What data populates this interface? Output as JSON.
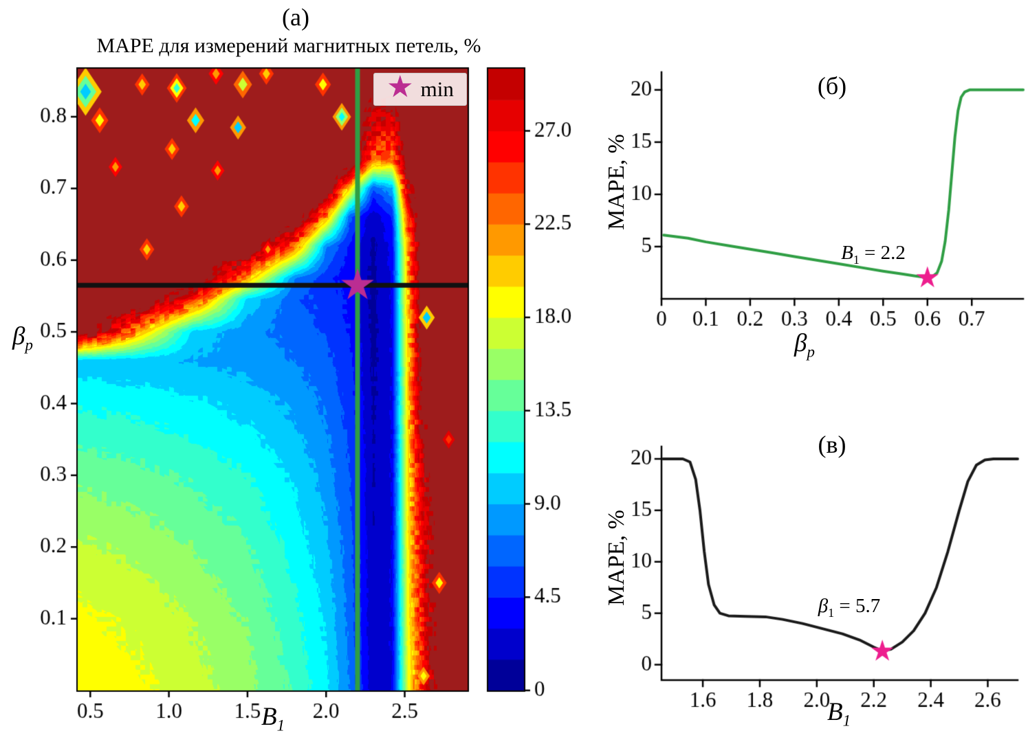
{
  "panels": {
    "a": {
      "label": "(а)",
      "title": "MAPE для измерений магнитных петель, %",
      "xlabel_base": "B",
      "xlabel_sub": "1",
      "ylabel_base": "β",
      "ylabel_sub": "p",
      "legend_symbol": "★",
      "legend_text": "min"
    },
    "b": {
      "label": "(б)",
      "ylabel": "MAPE, %",
      "xlabel_base": "β",
      "xlabel_sub": "p",
      "annotation_base": "B",
      "annotation_sub": "1",
      "annotation_rest": " = 2.2"
    },
    "v": {
      "label": "(в)",
      "ylabel": "MAPE, %",
      "xlabel_base": "B",
      "xlabel_sub": "1",
      "annotation_base": "β",
      "annotation_sub": "1",
      "annotation_rest": " = 5.7"
    }
  },
  "chart_data": [
    {
      "type": "heatmap",
      "title": "MAPE для измерений магнитных петель, %",
      "xlabel": "B_1",
      "ylabel": "beta_p",
      "x_range": [
        0.42,
        2.9
      ],
      "y_range": [
        0.0,
        0.867
      ],
      "x_tick_values": [
        0.5,
        1.0,
        1.5,
        2.0,
        2.5
      ],
      "x_tick_labels": [
        "0.5",
        "1.0",
        "1.5",
        "2.0",
        "2.5"
      ],
      "y_tick_values": [
        0.1,
        0.2,
        0.3,
        0.4,
        0.5,
        0.6,
        0.7,
        0.8
      ],
      "y_tick_labels": [
        "0.1",
        "0.2",
        "0.3",
        "0.4",
        "0.5",
        "0.6",
        "0.7",
        "0.8"
      ],
      "level_min": 0,
      "level_step": 1.5,
      "n_levels": 20,
      "colorbar": {
        "vmin": 0,
        "vmax": 30,
        "tick_values": [
          0,
          4.5,
          9.0,
          13.5,
          18.0,
          22.5,
          27.0
        ],
        "tick_labels": [
          "0",
          "4.5",
          "9.0",
          "13.5",
          "18.0",
          "22.5",
          "27.0"
        ]
      },
      "colors": [
        "#000099",
        "#0000CC",
        "#0000FF",
        "#0033FF",
        "#0066FF",
        "#0099FF",
        "#00CCFF",
        "#00FFFF",
        "#33FFCC",
        "#66FF99",
        "#99FF66",
        "#CCFF33",
        "#FFFF00",
        "#FFCC00",
        "#FF9900",
        "#FF6600",
        "#FF3300",
        "#FF0000",
        "#E60000",
        "#C40000"
      ],
      "over_color": "#9E1C1C",
      "grid_x": [
        0.42,
        0.8,
        1.15,
        1.5,
        1.8,
        2.0,
        2.15,
        2.3,
        2.42,
        2.52,
        2.62,
        2.75,
        2.9
      ],
      "grid_y": [
        0.0,
        0.1,
        0.2,
        0.3,
        0.4,
        0.46,
        0.5,
        0.545,
        0.575,
        0.62,
        0.66,
        0.7,
        0.74,
        0.867
      ],
      "values": [
        [
          19.2,
          18.4,
          17.2,
          15.6,
          13.2,
          10.8,
          7.5,
          1.8,
          3.0,
          18.0,
          26,
          35,
          35
        ],
        [
          18.4,
          17.6,
          16.4,
          14.8,
          12.5,
          10.2,
          7.0,
          1.7,
          3.0,
          18.5,
          27,
          35,
          35
        ],
        [
          16.8,
          16.0,
          15.0,
          13.6,
          11.5,
          9.4,
          6.6,
          1.6,
          3.0,
          19.0,
          28,
          35,
          35
        ],
        [
          14.6,
          14.0,
          13.2,
          12.0,
          10.2,
          8.4,
          6.0,
          1.5,
          3.0,
          19.5,
          30,
          35,
          35
        ],
        [
          11.8,
          11.4,
          10.8,
          9.9,
          8.6,
          7.2,
          5.4,
          1.3,
          3.0,
          20.0,
          32,
          35,
          35
        ],
        [
          9.6,
          9.4,
          9.0,
          8.4,
          7.5,
          6.4,
          4.9,
          1.2,
          3.0,
          20.0,
          33,
          35,
          35
        ],
        [
          35,
          22,
          10.0,
          8.0,
          6.9,
          5.9,
          4.5,
          1.1,
          3.1,
          20.5,
          34,
          35,
          35
        ],
        [
          35,
          35,
          26,
          10.0,
          6.3,
          5.4,
          4.1,
          1.0,
          3.2,
          21,
          35,
          35,
          35
        ],
        [
          35,
          35,
          35,
          22,
          7.5,
          5.1,
          3.8,
          1.0,
          3.3,
          21,
          35,
          35,
          35
        ],
        [
          35,
          35,
          35,
          35,
          24,
          8.0,
          4.2,
          1.2,
          3.6,
          22,
          35,
          35,
          35
        ],
        [
          35,
          35,
          35,
          35,
          35,
          22,
          6.5,
          1.8,
          4.5,
          25,
          35,
          35,
          35
        ],
        [
          35,
          35,
          35,
          35,
          35,
          35,
          20,
          6.0,
          9.0,
          30,
          35,
          35,
          35
        ],
        [
          35,
          35,
          35,
          35,
          35,
          35,
          35,
          24,
          22,
          35,
          35,
          35,
          35
        ],
        [
          35,
          35,
          35,
          35,
          35,
          35,
          35,
          35,
          35,
          35,
          35,
          35,
          35
        ]
      ],
      "speckles": [
        {
          "x": 0.47,
          "y": 0.835,
          "r": 26,
          "rings": [
            20,
            14,
            9
          ]
        },
        {
          "x": 0.56,
          "y": 0.795,
          "r": 14,
          "rings": [
            24,
            19
          ]
        },
        {
          "x": 0.83,
          "y": 0.845,
          "r": 12,
          "rings": [
            25,
            20
          ]
        },
        {
          "x": 1.05,
          "y": 0.84,
          "r": 16,
          "rings": [
            24,
            18,
            12
          ]
        },
        {
          "x": 1.17,
          "y": 0.795,
          "r": 14,
          "rings": [
            22,
            11
          ]
        },
        {
          "x": 1.3,
          "y": 0.86,
          "r": 12,
          "rings": [
            26,
            21
          ]
        },
        {
          "x": 1.02,
          "y": 0.755,
          "r": 12,
          "rings": [
            25,
            20
          ]
        },
        {
          "x": 0.66,
          "y": 0.73,
          "r": 11,
          "rings": [
            26,
            22
          ]
        },
        {
          "x": 1.47,
          "y": 0.845,
          "r": 15,
          "rings": [
            23,
            17
          ]
        },
        {
          "x": 1.62,
          "y": 0.86,
          "r": 12,
          "rings": [
            25,
            20
          ]
        },
        {
          "x": 1.44,
          "y": 0.785,
          "r": 13,
          "rings": [
            22,
            10
          ]
        },
        {
          "x": 1.31,
          "y": 0.725,
          "r": 11,
          "rings": [
            26,
            21
          ]
        },
        {
          "x": 1.98,
          "y": 0.845,
          "r": 13,
          "rings": [
            24,
            19
          ]
        },
        {
          "x": 2.1,
          "y": 0.8,
          "r": 15,
          "rings": [
            22,
            16,
            11
          ]
        },
        {
          "x": 1.08,
          "y": 0.675,
          "r": 12,
          "rings": [
            25,
            20
          ]
        },
        {
          "x": 0.86,
          "y": 0.615,
          "r": 12,
          "rings": [
            24,
            20
          ]
        },
        {
          "x": 1.63,
          "y": 0.615,
          "r": 9,
          "rings": [
            26,
            22
          ]
        },
        {
          "x": 2.64,
          "y": 0.52,
          "r": 13,
          "rings": [
            20,
            10
          ]
        },
        {
          "x": 2.78,
          "y": 0.35,
          "r": 10,
          "rings": [
            27,
            24
          ]
        },
        {
          "x": 2.72,
          "y": 0.15,
          "r": 12,
          "rings": [
            24,
            19
          ]
        },
        {
          "x": 2.62,
          "y": 0.02,
          "r": 10,
          "rings": [
            22,
            18
          ]
        }
      ],
      "vline": {
        "x": 2.2,
        "color": "#2F9E44",
        "width": 7
      },
      "hline": {
        "y": 0.565,
        "color": "#111111",
        "width": 7
      },
      "min_marker": {
        "x": 2.2,
        "y": 0.565,
        "color": "#BB2D92"
      },
      "legend": {
        "symbol": "star",
        "text": "min"
      }
    },
    {
      "type": "line",
      "panel": "б",
      "color": "#2F9E44",
      "xlabel": "β_p",
      "ylabel": "MAPE, %",
      "x_range": [
        0,
        0.816
      ],
      "y_range": [
        0,
        21.7
      ],
      "x_tick_values": [
        0,
        0.1,
        0.2,
        0.3,
        0.4,
        0.5,
        0.6,
        0.7
      ],
      "x_tick_labels": [
        "0",
        "0.1",
        "0.2",
        "0.3",
        "0.4",
        "0.5",
        "0.6",
        "0.7"
      ],
      "y_tick_values": [
        5,
        10,
        15,
        20
      ],
      "y_tick_labels": [
        "5",
        "10",
        "15",
        "20"
      ],
      "x": [
        0.005,
        0.06,
        0.1,
        0.15,
        0.2,
        0.25,
        0.3,
        0.35,
        0.4,
        0.45,
        0.5,
        0.54,
        0.57,
        0.595,
        0.61,
        0.622,
        0.632,
        0.64,
        0.648,
        0.655,
        0.662,
        0.669,
        0.676,
        0.684,
        0.695,
        0.75,
        0.816
      ],
      "y": [
        6.1,
        5.8,
        5.45,
        5.1,
        4.75,
        4.4,
        4.05,
        3.7,
        3.35,
        3.0,
        2.65,
        2.4,
        2.2,
        2.05,
        2.1,
        2.5,
        3.6,
        5.5,
        8.5,
        12,
        15.5,
        18,
        19.3,
        19.8,
        20,
        20,
        20
      ],
      "star": {
        "x": 0.6,
        "y": 2.0,
        "color": "#ED1E8E"
      },
      "annotation": "B1 = 2.2"
    },
    {
      "type": "line",
      "panel": "в",
      "color": "#1A1A1A",
      "xlabel": "B_1",
      "ylabel": "MAPE, %",
      "x_range": [
        1.455,
        2.705
      ],
      "y_range": [
        -1.5,
        21.2
      ],
      "x_tick_values": [
        1.6,
        1.8,
        2.0,
        2.2,
        2.4,
        2.6
      ],
      "x_tick_labels": [
        "1.6",
        "1.8",
        "2.0",
        "2.2",
        "2.4",
        "2.6"
      ],
      "y_tick_values": [
        0,
        5,
        10,
        15,
        20
      ],
      "y_tick_labels": [
        "0",
        "5",
        "10",
        "15",
        "20"
      ],
      "x": [
        1.46,
        1.53,
        1.555,
        1.575,
        1.59,
        1.605,
        1.62,
        1.64,
        1.66,
        1.69,
        1.75,
        1.82,
        1.88,
        1.95,
        2.02,
        2.09,
        2.15,
        2.2,
        2.23,
        2.26,
        2.3,
        2.34,
        2.38,
        2.42,
        2.46,
        2.5,
        2.53,
        2.56,
        2.59,
        2.62,
        2.705
      ],
      "y": [
        20,
        20,
        19.7,
        18,
        15,
        11,
        7.8,
        5.8,
        5.0,
        4.75,
        4.7,
        4.65,
        4.4,
        4.0,
        3.5,
        3.0,
        2.4,
        1.7,
        1.35,
        1.5,
        2.2,
        3.3,
        5.0,
        7.5,
        11,
        15,
        17.8,
        19.4,
        19.9,
        20,
        20
      ],
      "star": {
        "x": 2.23,
        "y": 1.3,
        "color": "#ED1E8E"
      },
      "annotation": "β1 = 5.7"
    }
  ]
}
